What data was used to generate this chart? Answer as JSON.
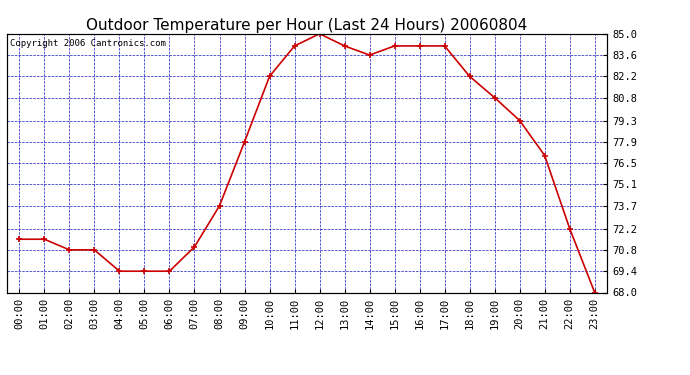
{
  "title": "Outdoor Temperature per Hour (Last 24 Hours) 20060804",
  "copyright_text": "Copyright 2006 Cantronics.com",
  "hours": [
    "00:00",
    "01:00",
    "02:00",
    "03:00",
    "04:00",
    "05:00",
    "06:00",
    "07:00",
    "08:00",
    "09:00",
    "10:00",
    "11:00",
    "12:00",
    "13:00",
    "14:00",
    "15:00",
    "16:00",
    "17:00",
    "18:00",
    "19:00",
    "20:00",
    "21:00",
    "22:00",
    "23:00"
  ],
  "temperatures": [
    71.5,
    71.5,
    70.8,
    70.8,
    69.4,
    69.4,
    69.4,
    71.0,
    73.7,
    77.9,
    82.2,
    84.2,
    85.0,
    84.2,
    83.6,
    84.2,
    84.2,
    84.2,
    82.2,
    80.8,
    79.3,
    77.0,
    72.2,
    68.0
  ],
  "ylim": [
    68.0,
    85.0
  ],
  "yticks": [
    85.0,
    83.6,
    82.2,
    80.8,
    79.3,
    77.9,
    76.5,
    75.1,
    73.7,
    72.2,
    70.8,
    69.4,
    68.0
  ],
  "line_color": "#cc0000",
  "marker_color": "#cc0000",
  "bg_color": "#ffffff",
  "plot_bg_color": "#ffffff",
  "grid_color": "#0000bb",
  "title_fontsize": 11,
  "copyright_fontsize": 6.5,
  "tick_fontsize": 7.5,
  "fig_width": 6.9,
  "fig_height": 3.75,
  "dpi": 100
}
